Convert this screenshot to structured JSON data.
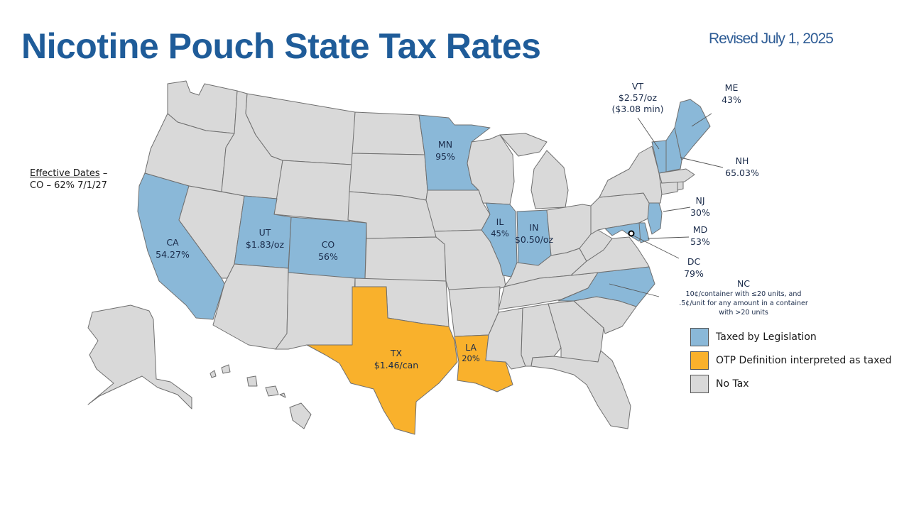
{
  "title": "Nicotine Pouch State Tax Rates",
  "revised": "Revised July 1, 2025",
  "effective": {
    "heading": "Effective Dates",
    "dash": " –",
    "line": "CO – 62% 7/1/27"
  },
  "colors": {
    "legislation": "#8ab8d8",
    "otp": "#f9b12c",
    "none": "#d9d9d9",
    "title": "#1f5c99"
  },
  "labels": {
    "ca": [
      "CA",
      "54.27%"
    ],
    "ut": [
      "UT",
      "$1.83/oz"
    ],
    "co": [
      "CO",
      "56%"
    ],
    "mn": [
      "MN",
      "95%"
    ],
    "il": [
      "IL",
      "45%"
    ],
    "in": [
      "IN",
      "$0.50/oz"
    ],
    "tx": [
      "TX",
      "$1.46/can"
    ],
    "la": [
      "LA",
      "20%"
    ],
    "vt": [
      "VT",
      "$2.57/oz",
      "($3.08 min)"
    ],
    "me": [
      "ME",
      "43%"
    ],
    "nh": [
      "NH",
      "65.03%"
    ],
    "nj": [
      "NJ",
      "30%"
    ],
    "md": [
      "MD",
      "53%"
    ],
    "dc": [
      "DC",
      "79%"
    ],
    "nc": [
      "NC",
      "10¢/container with ≤20 units, and",
      ".5¢/unit for any amount in a container",
      "with >20 units"
    ]
  },
  "legend": [
    {
      "label": "Taxed by Legislation",
      "color": "#8ab8d8"
    },
    {
      "label": "OTP Definition interpreted as taxed",
      "color": "#f9b12c"
    },
    {
      "label": "No Tax",
      "color": "#d9d9d9"
    }
  ]
}
